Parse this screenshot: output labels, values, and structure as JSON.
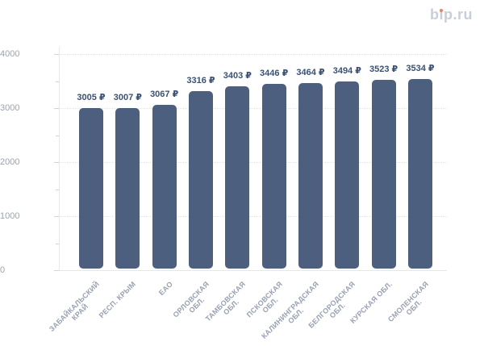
{
  "logo": {
    "text": "bip.ru"
  },
  "colors": {
    "bar": "#4d5f7e",
    "value_label": "#3a5175",
    "axis_label": "#9aa2b0",
    "category_label": "#98a2b3",
    "gridline": "#dfe3e9",
    "axis_line": "#e6e8ed",
    "logo_text": "#c9cedb",
    "logo_dot": "#f57f5c"
  },
  "chart_data": {
    "type": "bar",
    "title": "",
    "xlabel": "",
    "ylabel": "",
    "categories": [
      "ЗАБАЙКАЛЬСКИЙ\nКРАЙ",
      "РЕСП. КРЫМ",
      "ЕАО",
      "ОРЛОВСКАЯ\nОБЛ.",
      "ТАМБОВСКАЯ\nОБЛ.",
      "ПСКОВСКАЯ\nОБЛ.",
      "КАЛИНИНГРАДСКАЯ\nОБЛ.",
      "БЕЛГОРОДСКАЯ\nОБЛ.",
      "КУРСКАЯ ОБЛ.",
      "СМОЛЕНСКАЯ\nОБЛ."
    ],
    "values": [
      3005,
      3007,
      3067,
      3316,
      3403,
      3446,
      3464,
      3494,
      3523,
      3534
    ],
    "value_suffix": " ₽",
    "value_labels": [
      "3005 ₽",
      "3007 ₽",
      "3067 ₽",
      "3316 ₽",
      "3403 ₽",
      "3446 ₽",
      "3464 ₽",
      "3494 ₽",
      "3523 ₽",
      "3534 ₽"
    ],
    "ylim": [
      0,
      4000
    ],
    "yticks": [
      0,
      1000,
      2000,
      3000,
      4000
    ],
    "minor_tick_interval": 500,
    "grid": "horizontal-dotted-at-major-ticks",
    "legend": "none",
    "bar_corner_radius": 5
  }
}
